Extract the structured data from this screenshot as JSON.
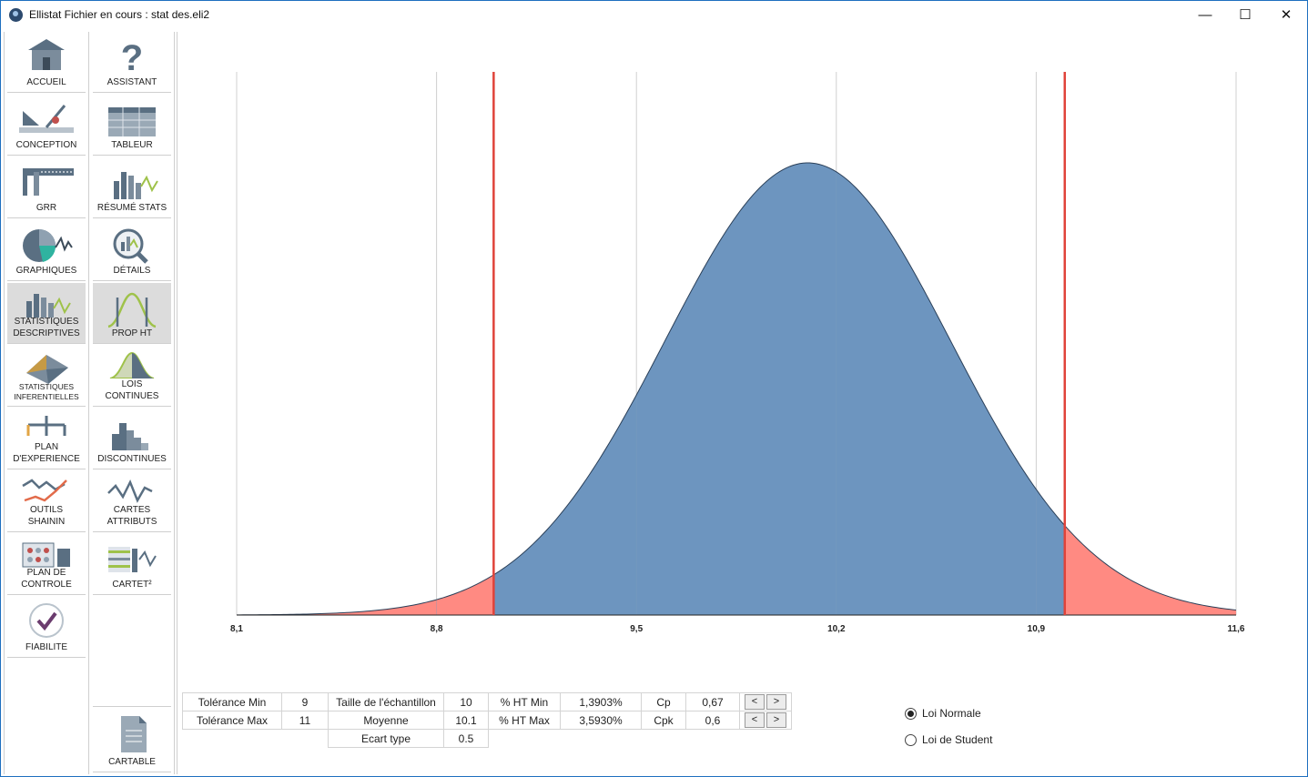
{
  "window": {
    "title": "Ellistat Fichier en cours : stat des.eli2",
    "controls": {
      "minimize": "—",
      "maximize": "☐",
      "close": "✕"
    }
  },
  "sidebar_left": [
    {
      "label": "ACCUEIL",
      "icon": "home-icon"
    },
    {
      "label": "CONCEPTION",
      "icon": "conception-icon"
    },
    {
      "label": "GRR",
      "icon": "caliper-icon"
    },
    {
      "label": "GRAPHIQUES",
      "icon": "pie-chart-icon"
    },
    {
      "label": "STATISTIQUES",
      "label2": "DESCRIPTIVES",
      "icon": "descriptive-stats-icon",
      "active": true
    },
    {
      "label": "STATISTIQUES",
      "label2": "INFERENTIELLES",
      "icon": "inferential-stats-icon"
    },
    {
      "label": "PLAN",
      "label2": "D'EXPERIENCE",
      "icon": "experiment-plan-icon"
    },
    {
      "label": "OUTILS",
      "label2": "SHAININ",
      "icon": "shainin-icon"
    },
    {
      "label": "PLAN DE",
      "label2": "CONTROLE",
      "icon": "control-plan-icon"
    },
    {
      "label": "FIABILITE",
      "icon": "reliability-check-icon"
    }
  ],
  "sidebar_right": [
    {
      "label": "ASSISTANT",
      "icon": "question-icon"
    },
    {
      "label": "TABLEUR",
      "icon": "spreadsheet-icon"
    },
    {
      "label": "RÉSUMÉ STATS",
      "icon": "summary-stats-icon"
    },
    {
      "label": "DÉTAILS",
      "icon": "magnifier-chart-icon"
    },
    {
      "label": "PROP HT",
      "icon": "distribution-tails-icon",
      "active": true
    },
    {
      "label": "LOIS",
      "label2": "CONTINUES",
      "icon": "continuous-law-icon"
    },
    {
      "label": "DISCONTINUES",
      "icon": "histogram-icon"
    },
    {
      "label": "CARTES",
      "label2": "ATTRIBUTS",
      "icon": "control-chart-icon"
    },
    {
      "label": "CARTET²",
      "icon": "card-t2-icon"
    }
  ],
  "cartable": {
    "label": "CARTABLE",
    "icon": "document-icon"
  },
  "chart_data": {
    "type": "area",
    "distribution": "normal",
    "mean": 10.1,
    "std": 0.5,
    "xlim": [
      8.1,
      11.6
    ],
    "x_ticks": [
      "8,1",
      "8,8",
      "9,5",
      "10,2",
      "10,9",
      "11,6"
    ],
    "x_tick_values": [
      8.1,
      8.8,
      9.5,
      10.2,
      10.9,
      11.6
    ],
    "tolerance_min": 9,
    "tolerance_max": 11,
    "grid": true,
    "colors": {
      "inside": "#6d95bf",
      "outside": "#ff8a82",
      "limit_line": "#e0433a",
      "curve": "#2a3f58",
      "grid": "#d0d0d0"
    }
  },
  "stats": {
    "tol_min_label": "Tolérance Min",
    "tol_min": "9",
    "tol_max_label": "Tolérance Max",
    "tol_max": "11",
    "sample_label": "Taille de l'échantillon",
    "sample": "10",
    "mean_label": "Moyenne",
    "mean": "10.1",
    "std_label": "Ecart type",
    "std": "0.5",
    "ht_min_label": "% HT Min",
    "ht_min": "1,3903%",
    "ht_max_label": "% HT Max",
    "ht_max": "3,5930%",
    "cp_label": "Cp",
    "cp": "0,67",
    "cpk_label": "Cpk",
    "cpk": "0,6",
    "prev": "<",
    "next": ">"
  },
  "law": {
    "normal": "Loi Normale",
    "student": "Loi de Student",
    "selected": "normal"
  }
}
